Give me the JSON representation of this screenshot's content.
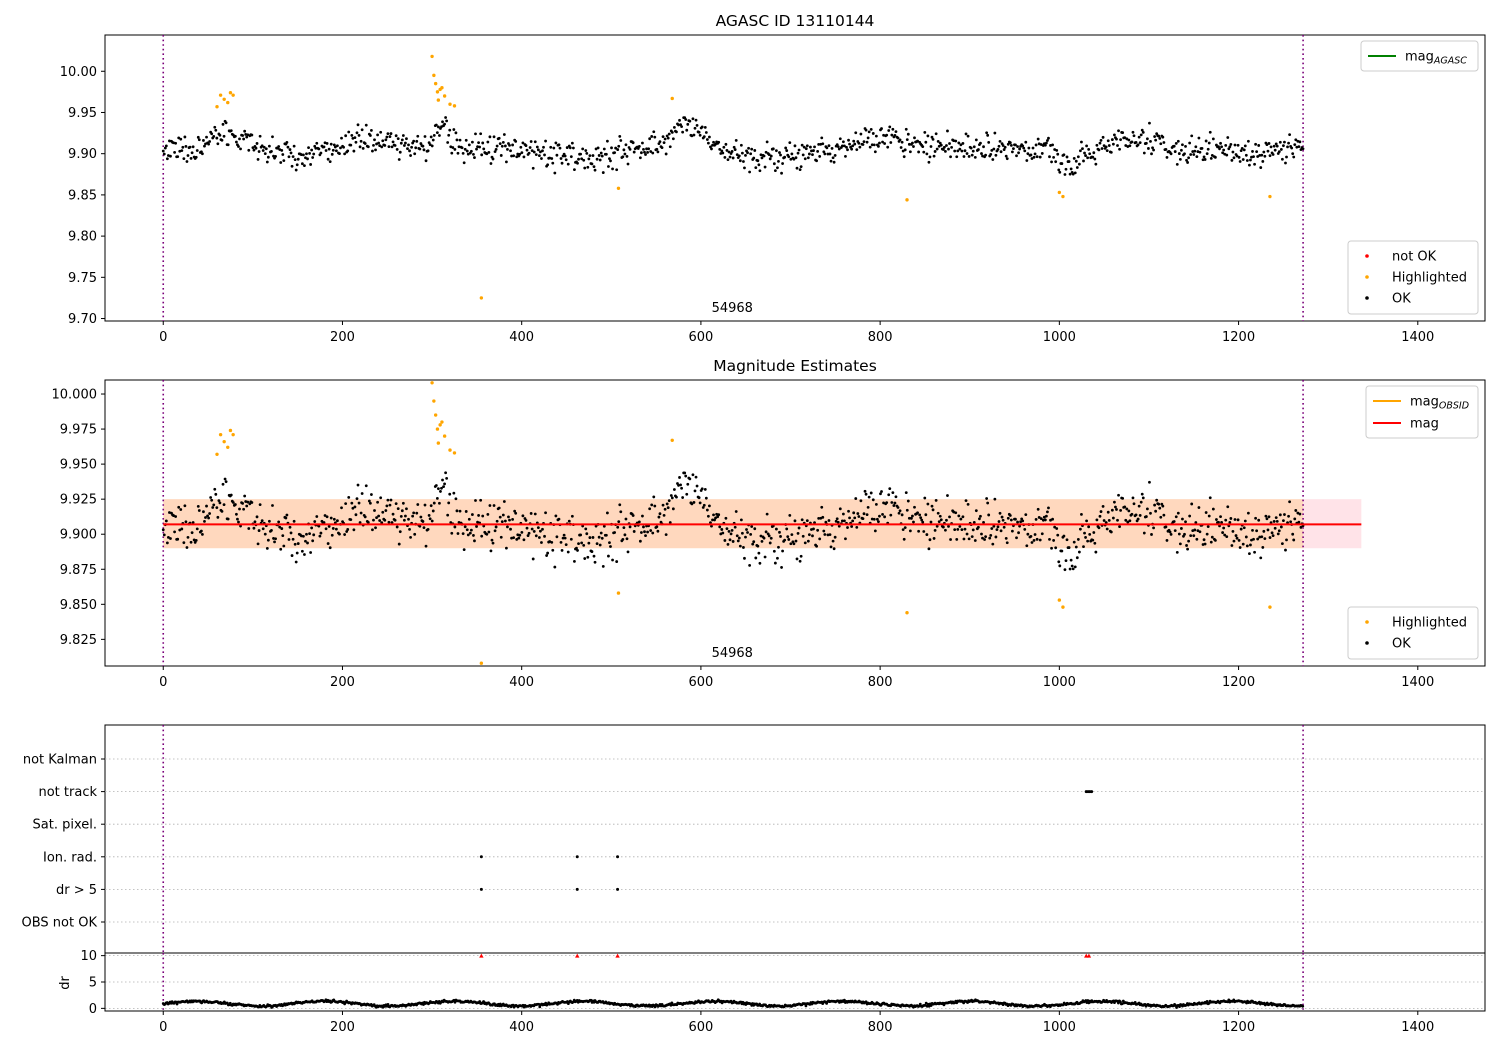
{
  "chart_data": [
    {
      "id": "mag-agasc",
      "type": "scatter",
      "title": "AGASC ID 13110144",
      "xlim": [
        -65,
        1475
      ],
      "ylim": [
        9.697,
        10.044
      ],
      "xticks": [
        0,
        200,
        400,
        600,
        800,
        1000,
        1200,
        1400
      ],
      "yticks": [
        9.7,
        9.75,
        9.8,
        9.85,
        9.9,
        9.95,
        10.0
      ],
      "ytick_labels": [
        "9.70",
        "9.75",
        "9.80",
        "9.85",
        "9.90",
        "9.95",
        "10.00"
      ],
      "obsid_lines": [
        0,
        1272
      ],
      "obsid_label": {
        "text": "54968",
        "x": 635
      },
      "legend_lines": [
        {
          "label": "mag",
          "sub": "AGASC",
          "color": "#008000"
        }
      ],
      "legend_points": [
        {
          "label": "not OK",
          "color": "#ff0000"
        },
        {
          "label": "Highlighted",
          "color": "#ffa500"
        },
        {
          "label": "OK",
          "color": "#000000"
        }
      ],
      "series": [
        {
          "name": "OK",
          "color": "#000000",
          "pattern": "main"
        },
        {
          "name": "Highlighted",
          "color": "#ffa500",
          "points": [
            [
              60,
              9.957
            ],
            [
              64,
              9.971
            ],
            [
              68,
              9.966
            ],
            [
              72,
              9.962
            ],
            [
              75,
              9.974
            ],
            [
              78,
              9.971
            ],
            [
              300,
              10.018
            ],
            [
              302,
              9.995
            ],
            [
              304,
              9.985
            ],
            [
              306,
              9.975
            ],
            [
              307,
              9.965
            ],
            [
              309,
              9.978
            ],
            [
              311,
              9.98
            ],
            [
              314,
              9.97
            ],
            [
              320,
              9.96
            ],
            [
              325,
              9.958
            ],
            [
              355,
              9.725
            ],
            [
              508,
              9.858
            ],
            [
              568,
              9.967
            ],
            [
              830,
              9.844
            ],
            [
              1000,
              9.853
            ],
            [
              1004,
              9.848
            ],
            [
              1235,
              9.848
            ]
          ]
        }
      ]
    },
    {
      "id": "mag-estimates",
      "type": "scatter",
      "title": "Magnitude Estimates",
      "xlim": [
        -65,
        1475
      ],
      "ylim": [
        9.806,
        10.01
      ],
      "xticks": [
        0,
        200,
        400,
        600,
        800,
        1000,
        1200,
        1400
      ],
      "yticks": [
        9.825,
        9.85,
        9.875,
        9.9,
        9.925,
        9.95,
        9.975,
        10.0
      ],
      "ytick_labels": [
        "9.825",
        "9.850",
        "9.875",
        "9.900",
        "9.925",
        "9.950",
        "9.975",
        "10.000"
      ],
      "obsid_lines": [
        0,
        1272
      ],
      "obsid_label": {
        "text": "54968",
        "x": 635
      },
      "mag_line": {
        "y": 9.907,
        "xmin": 0,
        "xmax": 1337,
        "color": "#ff0000"
      },
      "mag_band": {
        "ymin": 9.89,
        "ymax": 9.925,
        "xmin": 0,
        "xmax": 1337,
        "color": "#ffc0cb"
      },
      "obsid_band": {
        "ymin": 9.89,
        "ymax": 9.925,
        "xmin": 0,
        "xmax": 1272,
        "color": "#ffa500"
      },
      "legend_lines": [
        {
          "label": "mag",
          "sub": "OBSID",
          "color": "#ffa500"
        },
        {
          "label": "mag",
          "sub": "",
          "color": "#ff0000"
        }
      ],
      "legend_points": [
        {
          "label": "Highlighted",
          "color": "#ffa500"
        },
        {
          "label": "OK",
          "color": "#000000"
        }
      ],
      "series": [
        {
          "name": "OK",
          "color": "#000000",
          "pattern": "main"
        },
        {
          "name": "Highlighted",
          "color": "#ffa500",
          "points": [
            [
              60,
              9.957
            ],
            [
              64,
              9.971
            ],
            [
              68,
              9.966
            ],
            [
              72,
              9.962
            ],
            [
              75,
              9.974
            ],
            [
              78,
              9.971
            ],
            [
              300,
              10.008
            ],
            [
              302,
              9.995
            ],
            [
              304,
              9.985
            ],
            [
              306,
              9.975
            ],
            [
              307,
              9.965
            ],
            [
              309,
              9.978
            ],
            [
              311,
              9.98
            ],
            [
              314,
              9.97
            ],
            [
              320,
              9.96
            ],
            [
              325,
              9.958
            ],
            [
              355,
              9.808
            ],
            [
              508,
              9.858
            ],
            [
              568,
              9.967
            ],
            [
              830,
              9.844
            ],
            [
              1000,
              9.853
            ],
            [
              1004,
              9.848
            ],
            [
              1235,
              9.848
            ]
          ]
        }
      ]
    },
    {
      "id": "flags",
      "type": "scatter",
      "categories": [
        "not Kalman",
        "not track",
        "Sat. pixel.",
        "Ion. rad.",
        "dr > 5",
        "OBS not OK"
      ],
      "xlim": [
        -65,
        1475
      ],
      "obsid_lines": [
        0,
        1272
      ],
      "flag_points": [
        {
          "category": "not track",
          "x": [
            1030,
            1032,
            1034,
            1036
          ]
        },
        {
          "category": "Ion. rad.",
          "x": [
            355,
            462,
            507
          ]
        },
        {
          "category": "dr > 5",
          "x": [
            355,
            462,
            507
          ]
        }
      ]
    },
    {
      "id": "dr",
      "type": "scatter",
      "ylabel": "dr",
      "ylim": [
        -0.5,
        10.5
      ],
      "yticks": [
        0,
        5,
        10
      ],
      "xlim": [
        -65,
        1475
      ],
      "xticks": [
        0,
        200,
        400,
        600,
        800,
        1000,
        1200,
        1400
      ],
      "obsid_lines": [
        0,
        1272
      ],
      "markers_at_10": [
        355,
        462,
        507,
        1030,
        1033
      ],
      "series": [
        {
          "name": "dr",
          "color": "#000000",
          "pattern": "dr"
        }
      ]
    }
  ]
}
